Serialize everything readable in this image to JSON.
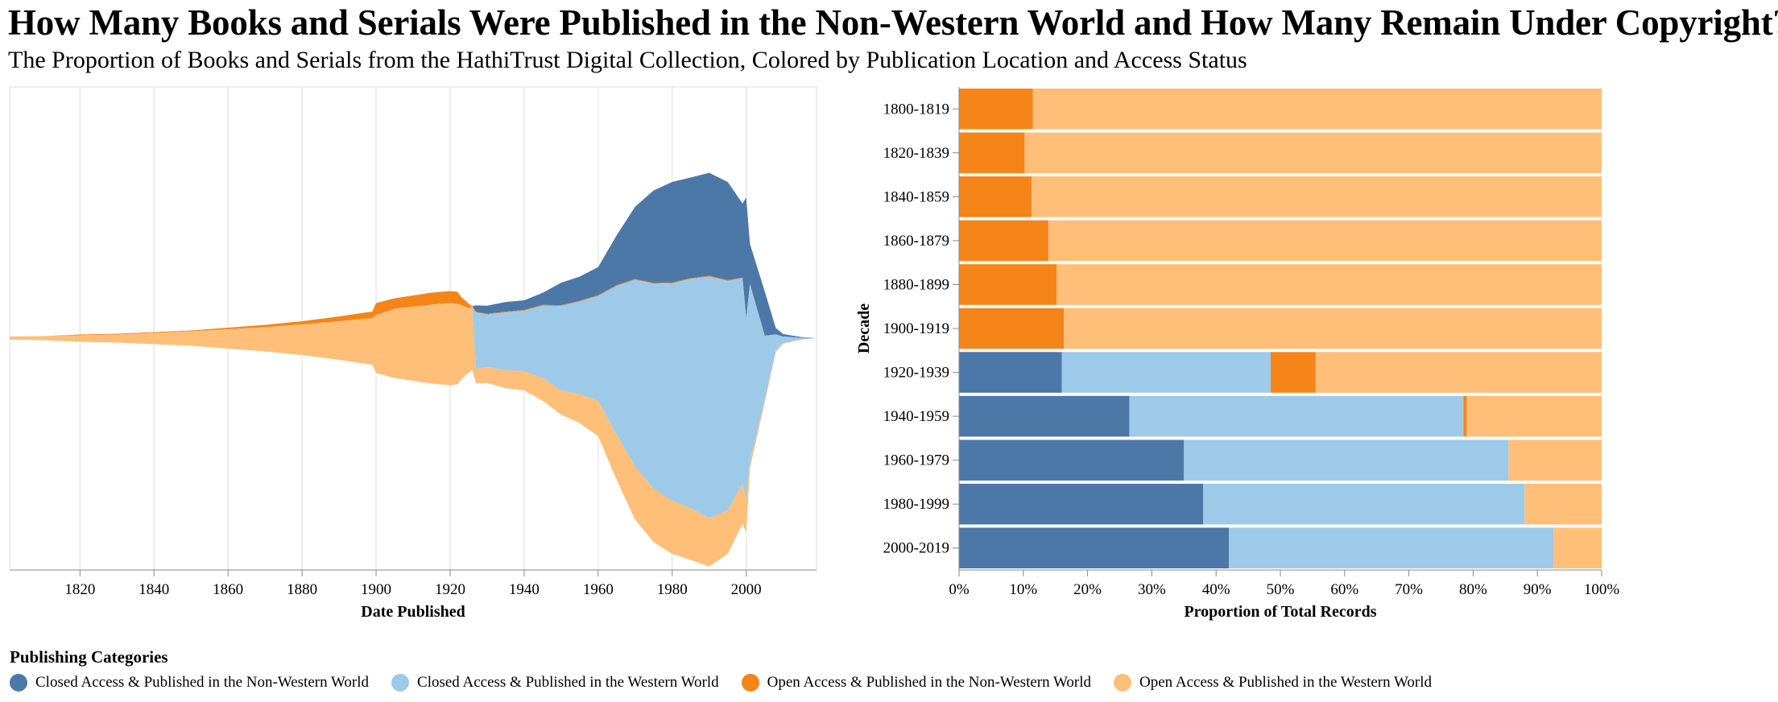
{
  "header": {
    "title": "How Many Books and Serials Were Published in the Non-Western World and How Many Remain Under Copyright?",
    "subtitle": "The Proportion of Books and Serials from the HathiTrust Digital Collection, Colored by Publication Location and Access Status"
  },
  "legend": {
    "title": "Publishing Categories",
    "items": [
      {
        "label": "Closed Access & Published in the Non-Western World",
        "color": "#4c78a8"
      },
      {
        "label": "Closed Access & Published in the Western World",
        "color": "#9ecae9"
      },
      {
        "label": "Open Access & Published in the Non-Western World",
        "color": "#f58518"
      },
      {
        "label": "Open Access & Published in the Western World",
        "color": "#ffbf79"
      }
    ]
  },
  "chart_data": [
    {
      "type": "area",
      "subtype": "streamgraph",
      "xlabel": "Date Published",
      "ylabel": "",
      "xlim": [
        1801,
        2019
      ],
      "x_ticks": [
        1820,
        1840,
        1860,
        1880,
        1900,
        1920,
        1940,
        1960,
        1980,
        2000
      ],
      "grid": true,
      "x": [
        1801,
        1810,
        1820,
        1830,
        1840,
        1850,
        1860,
        1870,
        1880,
        1890,
        1899,
        1900,
        1905,
        1910,
        1915,
        1920,
        1922,
        1923,
        1925,
        1926,
        1927,
        1930,
        1935,
        1940,
        1945,
        1950,
        1955,
        1960,
        1965,
        1970,
        1975,
        1980,
        1985,
        1990,
        1995,
        1999,
        2000,
        2001,
        2005,
        2008,
        2010,
        2015,
        2019
      ],
      "series": [
        {
          "name": "Closed Access & Published in the Non-Western World",
          "color": "#4c78a8",
          "values": [
            0,
            0,
            0,
            0,
            0,
            0,
            0,
            0,
            0,
            0,
            0,
            0,
            0,
            0,
            0,
            0,
            0,
            0,
            0,
            0,
            8,
            10,
            12,
            12,
            15,
            28,
            30,
            35,
            62,
            90,
            115,
            125,
            125,
            128,
            122,
            92,
            150,
            50,
            55,
            8,
            3,
            1,
            0
          ]
        },
        {
          "name": "Closed Access & Published in the Western World",
          "color": "#9ecae9",
          "values": [
            0,
            0,
            0,
            0,
            0,
            0,
            0,
            0,
            0,
            0,
            0,
            0,
            0,
            0,
            0,
            0,
            0,
            0,
            0,
            0,
            70,
            65,
            72,
            75,
            90,
            105,
            115,
            130,
            185,
            232,
            255,
            270,
            285,
            300,
            285,
            255,
            225,
            220,
            80,
            20,
            8,
            2,
            0
          ]
        },
        {
          "name": "Open Access & Published in the Non-Western World",
          "color": "#f58518",
          "values": [
            0,
            0,
            1,
            1,
            1,
            1,
            2,
            3,
            4,
            6,
            8,
            15,
            13,
            14,
            15,
            15,
            15,
            10,
            6,
            1,
            1,
            1,
            1,
            1,
            1,
            1,
            1,
            1,
            1,
            1,
            1,
            1,
            1,
            1,
            1,
            1,
            1,
            1,
            0,
            0,
            0,
            0,
            0
          ]
        },
        {
          "name": "Open Access & Published in the Western World",
          "color": "#ffbf79",
          "values": [
            4,
            5,
            8,
            10,
            14,
            18,
            24,
            30,
            38,
            48,
            58,
            72,
            86,
            92,
            98,
            102,
            100,
            92,
            80,
            78,
            18,
            20,
            22,
            24,
            28,
            30,
            36,
            44,
            56,
            66,
            66,
            66,
            64,
            60,
            54,
            50,
            40,
            8,
            3,
            2,
            1,
            0,
            0
          ]
        }
      ]
    },
    {
      "type": "bar",
      "orientation": "horizontal",
      "stacked": "normalize",
      "xlabel": "Proportion of Total Records",
      "ylabel": "Decade",
      "xlim": [
        0,
        100
      ],
      "x_ticks": [
        "0%",
        "10%",
        "20%",
        "30%",
        "40%",
        "50%",
        "60%",
        "70%",
        "80%",
        "90%",
        "100%"
      ],
      "categories": [
        "1800-1819",
        "1820-1839",
        "1840-1859",
        "1860-1879",
        "1880-1899",
        "1900-1919",
        "1920-1939",
        "1940-1959",
        "1960-1979",
        "1980-1999",
        "2000-2019"
      ],
      "series": [
        {
          "name": "Closed Access & Published in the Non-Western World",
          "color": "#4c78a8",
          "values": [
            0,
            0,
            0,
            0,
            0,
            0,
            16,
            26.5,
            35,
            38,
            42
          ]
        },
        {
          "name": "Closed Access & Published in the Western World",
          "color": "#9ecae9",
          "values": [
            0,
            0,
            0,
            0,
            0,
            0,
            32.5,
            52,
            50.5,
            50,
            50.5
          ]
        },
        {
          "name": "Open Access & Published in the Non-Western World",
          "color": "#f58518",
          "values": [
            11.5,
            10.2,
            11.3,
            13.9,
            15.2,
            16.3,
            7,
            0.5,
            0,
            0,
            0
          ]
        },
        {
          "name": "Open Access & Published in the Western World",
          "color": "#ffbf79",
          "values": [
            88.5,
            89.8,
            88.7,
            86.1,
            84.8,
            83.7,
            44.5,
            21,
            14.5,
            12,
            7.5
          ]
        }
      ]
    }
  ]
}
